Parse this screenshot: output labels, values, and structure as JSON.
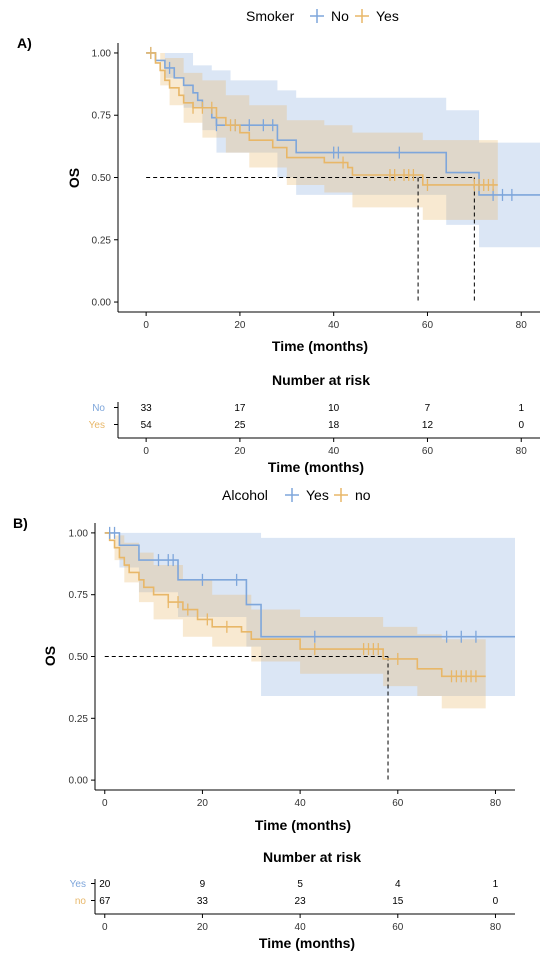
{
  "chart_data": [
    {
      "type": "line",
      "panel_label": "A)",
      "legend": {
        "title": "Smoker",
        "placement": "top"
      },
      "xlabel": "Time (months)",
      "ylabel": "OS",
      "xlim": [
        -6,
        84
      ],
      "ylim": [
        -0.04,
        1.04
      ],
      "x_ticks": [
        "0",
        "20",
        "40",
        "60",
        "80"
      ],
      "y_ticks": [
        "0.00",
        "0.25",
        "0.50",
        "0.75",
        "1.00"
      ],
      "median_survival": [
        58,
        70
      ],
      "series": [
        {
          "name": "No",
          "color": "#7EA6DB",
          "steps": [
            [
              0,
              1.0
            ],
            [
              2,
              0.97
            ],
            [
              4,
              0.94
            ],
            [
              6,
              0.9
            ],
            [
              8,
              0.87
            ],
            [
              10,
              0.84
            ],
            [
              11,
              0.81
            ],
            [
              12,
              0.78
            ],
            [
              14,
              0.74
            ],
            [
              15,
              0.71
            ],
            [
              28,
              0.65
            ],
            [
              32,
              0.6
            ],
            [
              64,
              0.52
            ],
            [
              71,
              0.43
            ],
            [
              84,
              0.43
            ]
          ],
          "censor": [
            1,
            5,
            15,
            19,
            22,
            25,
            27,
            40,
            41,
            54,
            74,
            76,
            78
          ],
          "ci_upper": [
            [
              0,
              1.0
            ],
            [
              6,
              1.0
            ],
            [
              10,
              0.95
            ],
            [
              14,
              0.93
            ],
            [
              18,
              0.89
            ],
            [
              28,
              0.85
            ],
            [
              32,
              0.82
            ],
            [
              64,
              0.77
            ],
            [
              71,
              0.64
            ],
            [
              84,
              0.64
            ]
          ],
          "ci_lower": [
            [
              0,
              1.0
            ],
            [
              4,
              0.9
            ],
            [
              8,
              0.78
            ],
            [
              12,
              0.69
            ],
            [
              15,
              0.6
            ],
            [
              28,
              0.5
            ],
            [
              32,
              0.43
            ],
            [
              64,
              0.31
            ],
            [
              71,
              0.22
            ],
            [
              84,
              0.22
            ]
          ]
        },
        {
          "name": "Yes",
          "color": "#E8B768",
          "steps": [
            [
              0,
              1.0
            ],
            [
              2,
              0.96
            ],
            [
              3,
              0.93
            ],
            [
              4,
              0.89
            ],
            [
              5,
              0.86
            ],
            [
              7,
              0.83
            ],
            [
              8,
              0.8
            ],
            [
              10,
              0.78
            ],
            [
              15,
              0.74
            ],
            [
              17,
              0.71
            ],
            [
              20,
              0.68
            ],
            [
              22,
              0.65
            ],
            [
              27,
              0.62
            ],
            [
              30,
              0.58
            ],
            [
              38,
              0.56
            ],
            [
              43,
              0.54
            ],
            [
              44,
              0.51
            ],
            [
              59,
              0.47
            ],
            [
              75,
              0.47
            ]
          ],
          "censor": [
            1,
            10,
            12,
            14,
            18,
            19,
            42,
            52,
            53,
            55,
            56,
            57,
            60,
            70,
            71,
            72,
            73,
            74
          ],
          "ci_upper": [
            [
              0,
              1.0
            ],
            [
              4,
              0.98
            ],
            [
              8,
              0.92
            ],
            [
              12,
              0.89
            ],
            [
              17,
              0.83
            ],
            [
              22,
              0.79
            ],
            [
              30,
              0.73
            ],
            [
              38,
              0.71
            ],
            [
              44,
              0.68
            ],
            [
              59,
              0.65
            ],
            [
              75,
              0.65
            ]
          ],
          "ci_lower": [
            [
              0,
              1.0
            ],
            [
              3,
              0.87
            ],
            [
              5,
              0.79
            ],
            [
              8,
              0.72
            ],
            [
              12,
              0.66
            ],
            [
              17,
              0.6
            ],
            [
              22,
              0.54
            ],
            [
              30,
              0.47
            ],
            [
              38,
              0.44
            ],
            [
              44,
              0.38
            ],
            [
              59,
              0.33
            ],
            [
              75,
              0.33
            ]
          ]
        }
      ],
      "risk_table": {
        "title": "Number at risk",
        "xlabel": "Time (months)",
        "times": [
          "0",
          "20",
          "40",
          "60",
          "80"
        ],
        "rows": [
          {
            "label": "No",
            "color": "#7EA6DB",
            "values": [
              "33",
              "17",
              "10",
              "7",
              "1"
            ]
          },
          {
            "label": "Yes",
            "color": "#E8B768",
            "values": [
              "54",
              "25",
              "18",
              "12",
              "0"
            ]
          }
        ]
      }
    },
    {
      "type": "line",
      "panel_label": "B)",
      "legend": {
        "title": "Alcohol",
        "placement": "top"
      },
      "xlabel": "Time (months)",
      "ylabel": "OS",
      "xlim": [
        -2,
        84
      ],
      "ylim": [
        -0.04,
        1.04
      ],
      "x_ticks": [
        "0",
        "20",
        "40",
        "60",
        "80"
      ],
      "y_ticks": [
        "0.00",
        "0.25",
        "0.50",
        "0.75",
        "1.00"
      ],
      "median_survival": [
        58
      ],
      "series": [
        {
          "name": "Yes",
          "color": "#7EA6DB",
          "steps": [
            [
              0,
              1.0
            ],
            [
              3,
              0.95
            ],
            [
              7,
              0.89
            ],
            [
              15,
              0.81
            ],
            [
              29,
              0.71
            ],
            [
              32,
              0.58
            ],
            [
              84,
              0.58
            ]
          ],
          "censor": [
            1,
            2,
            11,
            13,
            14,
            20,
            27,
            43,
            70,
            73,
            76
          ],
          "ci_upper": [
            [
              0,
              1.0
            ],
            [
              32,
              0.98
            ],
            [
              84,
              0.98
            ]
          ],
          "ci_lower": [
            [
              0,
              1.0
            ],
            [
              3,
              0.86
            ],
            [
              7,
              0.76
            ],
            [
              15,
              0.66
            ],
            [
              29,
              0.54
            ],
            [
              32,
              0.34
            ],
            [
              84,
              0.34
            ]
          ]
        },
        {
          "name": "no",
          "color": "#E8B768",
          "steps": [
            [
              0,
              1.0
            ],
            [
              1,
              0.97
            ],
            [
              2,
              0.94
            ],
            [
              3,
              0.9
            ],
            [
              4,
              0.87
            ],
            [
              5,
              0.84
            ],
            [
              7,
              0.81
            ],
            [
              8,
              0.78
            ],
            [
              10,
              0.75
            ],
            [
              13,
              0.72
            ],
            [
              16,
              0.69
            ],
            [
              19,
              0.65
            ],
            [
              22,
              0.62
            ],
            [
              28,
              0.6
            ],
            [
              30,
              0.57
            ],
            [
              40,
              0.53
            ],
            [
              57,
              0.49
            ],
            [
              64,
              0.45
            ],
            [
              69,
              0.42
            ],
            [
              78,
              0.42
            ]
          ],
          "censor": [
            13,
            15,
            17,
            21,
            25,
            43,
            53,
            54,
            55,
            56,
            60,
            71,
            72,
            73,
            74,
            75,
            76
          ],
          "ci_upper": [
            [
              0,
              1.0
            ],
            [
              2,
              0.99
            ],
            [
              4,
              0.96
            ],
            [
              7,
              0.92
            ],
            [
              10,
              0.87
            ],
            [
              16,
              0.81
            ],
            [
              22,
              0.75
            ],
            [
              30,
              0.69
            ],
            [
              40,
              0.66
            ],
            [
              57,
              0.62
            ],
            [
              64,
              0.59
            ],
            [
              69,
              0.57
            ],
            [
              78,
              0.57
            ]
          ],
          "ci_lower": [
            [
              0,
              1.0
            ],
            [
              2,
              0.89
            ],
            [
              4,
              0.8
            ],
            [
              7,
              0.72
            ],
            [
              10,
              0.65
            ],
            [
              16,
              0.58
            ],
            [
              22,
              0.54
            ],
            [
              30,
              0.48
            ],
            [
              40,
              0.43
            ],
            [
              57,
              0.38
            ],
            [
              64,
              0.34
            ],
            [
              69,
              0.29
            ],
            [
              78,
              0.29
            ]
          ]
        }
      ],
      "risk_table": {
        "title": "Number at risk",
        "xlabel": "Time (months)",
        "times": [
          "0",
          "20",
          "40",
          "60",
          "80"
        ],
        "rows": [
          {
            "label": "Yes",
            "color": "#7EA6DB",
            "values": [
              "20",
              "9",
              "5",
              "4",
              "1"
            ]
          },
          {
            "label": "no",
            "color": "#E8B768",
            "values": [
              "67",
              "33",
              "23",
              "15",
              "0"
            ]
          }
        ]
      }
    }
  ]
}
